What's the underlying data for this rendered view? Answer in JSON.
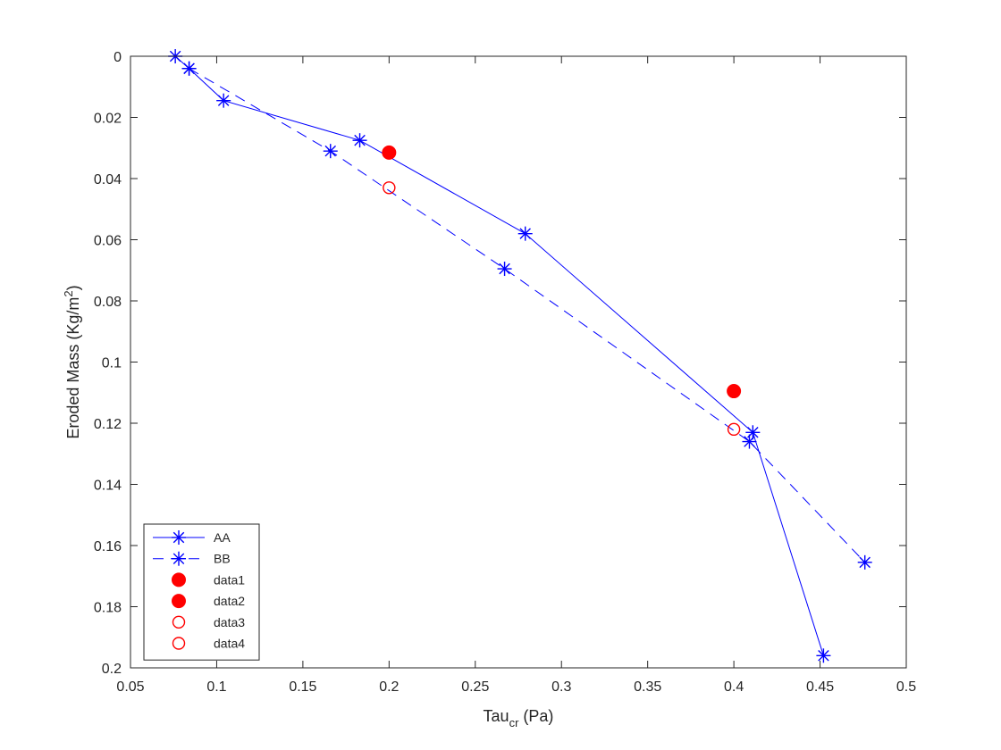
{
  "chart_data": {
    "type": "line",
    "xlabel": {
      "base": "Tau",
      "sub": "cr",
      "rest": "  (Pa)"
    },
    "ylabel": {
      "base": "Eroded Mass  (Kg/m",
      "sup": "2",
      "rest": ")"
    },
    "xlim": [
      0.05,
      0.5
    ],
    "ylim": [
      0,
      0.2
    ],
    "y_reversed": true,
    "box": true,
    "grid": false,
    "x_ticks": [
      "0.05",
      "0.1",
      "0.15",
      "0.2",
      "0.25",
      "0.3",
      "0.35",
      "0.4",
      "0.45",
      "0.5"
    ],
    "y_ticks": [
      "0",
      "0.02",
      "0.04",
      "0.06",
      "0.08",
      "0.1",
      "0.12",
      "0.14",
      "0.16",
      "0.18",
      "0.2"
    ],
    "legend_position": "bottom-left",
    "series": [
      {
        "name": "AA",
        "color": "#0000ff",
        "line": "solid",
        "marker": "asterisk",
        "x": [
          0.076,
          0.084,
          0.104,
          0.183,
          0.279,
          0.411,
          0.452
        ],
        "y": [
          0.0,
          0.004,
          0.0145,
          0.0275,
          0.058,
          0.123,
          0.196
        ]
      },
      {
        "name": "BB",
        "color": "#0000ff",
        "line": "dashed",
        "marker": "asterisk",
        "x": [
          0.084,
          0.166,
          0.267,
          0.409,
          0.476
        ],
        "y": [
          0.004,
          0.031,
          0.0695,
          0.126,
          0.1655
        ]
      },
      {
        "name": "data1",
        "color": "#ff0000",
        "line": "none",
        "marker": "filled-circle",
        "x": [
          0.2
        ],
        "y": [
          0.0315
        ]
      },
      {
        "name": "data2",
        "color": "#ff0000",
        "line": "none",
        "marker": "filled-circle",
        "x": [
          0.4
        ],
        "y": [
          0.1095
        ]
      },
      {
        "name": "data3",
        "color": "#ff0000",
        "line": "none",
        "marker": "open-circle",
        "x": [
          0.2
        ],
        "y": [
          0.043
        ]
      },
      {
        "name": "data4",
        "color": "#ff0000",
        "line": "none",
        "marker": "open-circle",
        "x": [
          0.4
        ],
        "y": [
          0.122
        ]
      }
    ]
  }
}
